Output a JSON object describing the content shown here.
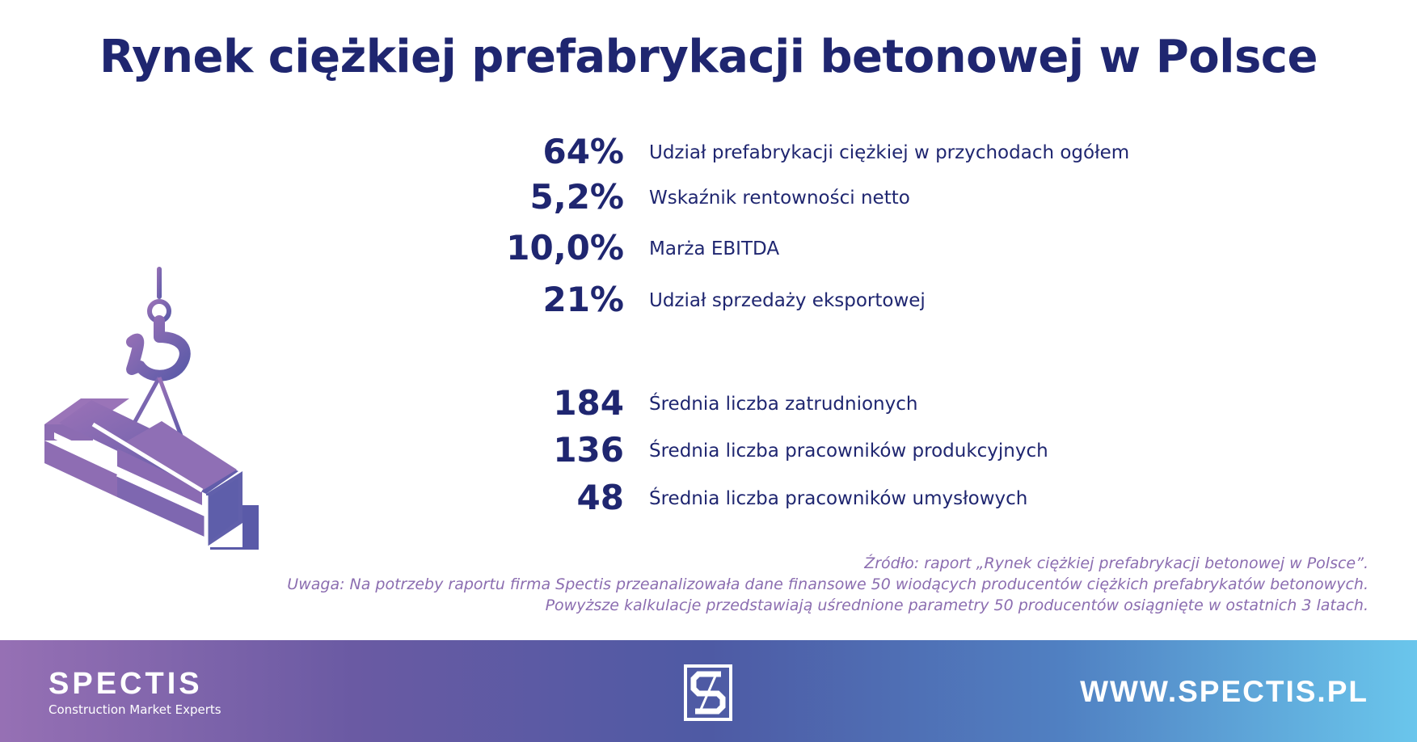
{
  "title": "Rynek ciężkiej prefabrykacji betonowej w Polsce",
  "illustration": {
    "icon": "crane-hook-lifting-beams-icon",
    "colors": [
      "#9670b4",
      "#5a5aa8"
    ]
  },
  "stats": [
    {
      "value": "64%",
      "label": "Udział prefabrykacji ciężkiej w przychodach ogółem"
    },
    {
      "value": "5,2%",
      "label": "Wskaźnik rentowności netto"
    },
    {
      "value": "10,0%",
      "label": "Marża EBITDA"
    },
    {
      "value": "21%",
      "label": "Udział sprzedaży eksportowej"
    },
    {
      "value": "184",
      "label": "Średnia liczba zatrudnionych"
    },
    {
      "value": "136",
      "label": "Średnia liczba pracowników produkcyjnych"
    },
    {
      "value": "48",
      "label": "Średnia liczba pracowników umysłowych"
    }
  ],
  "notes": {
    "source": "Źródło: raport „Rynek ciężkiej prefabrykacji betonowej w Polsce”.",
    "remark1": "Uwaga: Na potrzeby raportu firma Spectis przeanalizowała dane finansowe 50 wiodących producentów ciężkich prefabrykatów betonowych.",
    "remark2": "Powyższe kalkulacje przedstawiają uśrednione parametry 50 producentów osiągnięte w ostatnich 3 latach."
  },
  "footer": {
    "brand_name": "SPECTIS",
    "brand_tagline": "Construction Market Experts",
    "logo_icon": "spectis-s-logo-icon",
    "url": "WWW.SPECTIS.PL"
  },
  "colors": {
    "primary": "#1f2670",
    "note": "#8b6db0",
    "gradient_start": "#9670b4",
    "gradient_end": "#6ac6ec"
  }
}
